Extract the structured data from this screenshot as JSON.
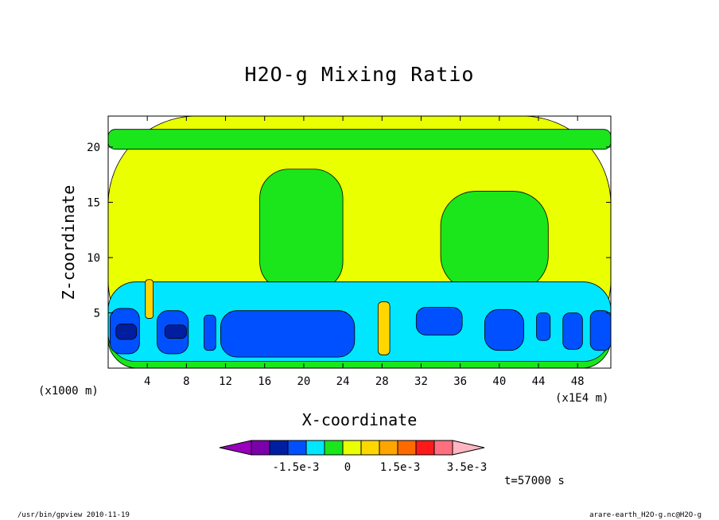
{
  "chart_data": {
    "type": "heatmap",
    "title": "H2O-g Mixing Ratio",
    "xlabel": "X-coordinate",
    "ylabel": "Z-coordinate",
    "x_unit_label": "(x1E4 m)",
    "z_unit_label": "(x1000 m)",
    "xlim": [
      0,
      51.4
    ],
    "ylim": [
      0,
      22.8
    ],
    "x_ticks": [
      4,
      8,
      12,
      16,
      20,
      24,
      28,
      32,
      36,
      40,
      44,
      48
    ],
    "y_ticks": [
      5,
      10,
      15,
      20
    ],
    "x_tick_labels": [
      "4",
      "8",
      "12",
      "16",
      "20",
      "24",
      "28",
      "32",
      "36",
      "40",
      "44",
      "48"
    ],
    "y_tick_labels": [
      "5",
      "10",
      "15",
      "20"
    ],
    "colorbar": {
      "colors": [
        "#9900bb",
        "#7a00aa",
        "#001ea0",
        "#0050ff",
        "#00e6ff",
        "#1be61b",
        "#eaff00",
        "#ffd700",
        "#ffa500",
        "#ff6a00",
        "#ff1a1a",
        "#ff6f7f",
        "#ffb6c1"
      ],
      "labels": [
        "-1.5e-3",
        "0",
        "1.5e-3",
        "3.5e-3"
      ]
    },
    "regions": [
      {
        "level": "yellow",
        "x": [
          0,
          51.4
        ],
        "z": [
          0,
          22.8
        ]
      },
      {
        "level": "green",
        "x": [
          0,
          51.4
        ],
        "z": [
          0,
          7.6
        ]
      },
      {
        "level": "green",
        "x": [
          15.5,
          24
        ],
        "z": [
          7,
          18
        ]
      },
      {
        "level": "green",
        "x": [
          34,
          45
        ],
        "z": [
          7,
          16
        ]
      },
      {
        "level": "green",
        "x": [
          0,
          51.4
        ],
        "z": [
          19.8,
          21.6
        ]
      },
      {
        "level": "cyan",
        "x": [
          0,
          51.4
        ],
        "z": [
          0.6,
          7.8
        ]
      },
      {
        "level": "blue",
        "x": [
          0.2,
          3.2
        ],
        "z": [
          1.3,
          5.4
        ]
      },
      {
        "level": "blue",
        "x": [
          5,
          8.2
        ],
        "z": [
          1.3,
          5.2
        ]
      },
      {
        "level": "blue",
        "x": [
          9.8,
          11
        ],
        "z": [
          1.6,
          4.8
        ]
      },
      {
        "level": "blue",
        "x": [
          11.5,
          25.2
        ],
        "z": [
          1,
          5.2
        ]
      },
      {
        "level": "blue",
        "x": [
          31.5,
          36.2
        ],
        "z": [
          3,
          5.5
        ]
      },
      {
        "level": "blue",
        "x": [
          38.5,
          42.5
        ],
        "z": [
          1.6,
          5.3
        ]
      },
      {
        "level": "blue",
        "x": [
          43.8,
          45.2
        ],
        "z": [
          2.5,
          5
        ]
      },
      {
        "level": "blue",
        "x": [
          46.5,
          48.5
        ],
        "z": [
          1.7,
          5
        ]
      },
      {
        "level": "blue",
        "x": [
          49.3,
          51.4
        ],
        "z": [
          1.6,
          5.2
        ]
      },
      {
        "level": "darkblue",
        "x": [
          0.8,
          2.9
        ],
        "z": [
          2.6,
          4
        ]
      },
      {
        "level": "darkblue",
        "x": [
          5.8,
          8
        ],
        "z": [
          2.7,
          3.9
        ]
      },
      {
        "level": "gold",
        "x": [
          3.8,
          4.6
        ],
        "z": [
          4.5,
          8
        ]
      },
      {
        "level": "gold",
        "x": [
          27.6,
          28.8
        ],
        "z": [
          1.2,
          6
        ]
      }
    ],
    "time_label": "t=57000 s"
  },
  "footer": {
    "left": "/usr/bin/gpview  2010-11-19",
    "right": "arare-earth_H2O-g.nc@H2O-g"
  },
  "colors": {
    "yellow": "#eaff00",
    "green": "#1be61b",
    "cyan": "#00e6ff",
    "blue": "#0050ff",
    "darkblue": "#001ea0",
    "gold": "#ffd700",
    "orange": "#ffa500"
  }
}
